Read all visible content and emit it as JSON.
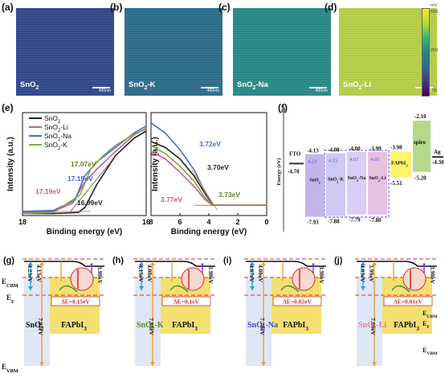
{
  "maps": {
    "panels": [
      {
        "letter": "(a)",
        "name": "SnO",
        "sub": "2",
        "suffix": "",
        "color": "#344a8f",
        "scale": "400nm"
      },
      {
        "letter": "(b)",
        "name": "SnO",
        "sub": "2",
        "suffix": "-K",
        "color": "#2f6f8e",
        "scale": "400nm"
      },
      {
        "letter": "(c)",
        "name": "SnO",
        "sub": "2",
        "suffix": "-Na",
        "color": "#2b8b8a",
        "scale": "400nm"
      },
      {
        "letter": "(d)",
        "name": "SnO",
        "sub": "2",
        "suffix": "-Li",
        "color": "#b8d24a",
        "scale": "400nm"
      }
    ],
    "colorbar": {
      "unit": "mV",
      "max": "550",
      "mid": "250",
      "min": "-50"
    }
  },
  "panel_e": {
    "letter": "(e)",
    "ylabel": "Intensity (a.u.)",
    "xlabel": "Binding energy (eV)",
    "left": {
      "xticks": [
        "18",
        "16"
      ],
      "xrange": [
        18,
        16
      ]
    },
    "right": {
      "xticks": [
        "8",
        "6",
        "4",
        "2",
        "0"
      ],
      "xrange": [
        8,
        0
      ]
    },
    "legend": [
      {
        "name": "SnO",
        "sub": "2",
        "suffix": "",
        "color": "#222222"
      },
      {
        "name": "SnO",
        "sub": "2",
        "suffix": "-Li",
        "color": "#c75a93"
      },
      {
        "name": "SnO",
        "sub": "2",
        "suffix": "-Na",
        "color": "#4a66d8"
      },
      {
        "name": "SnO",
        "sub": "2",
        "suffix": "-K",
        "color": "#7cad3a"
      }
    ],
    "cutoff_labels": [
      {
        "text": "17.07eV",
        "color": "#6b7f1a"
      },
      {
        "text": "17.15eV",
        "color": "#4a66d8"
      },
      {
        "text": "17.19eV",
        "color": "#c75a93"
      },
      {
        "text": "16.99eV",
        "color": "#222222"
      }
    ],
    "vb_labels": [
      {
        "text": "3.72eV",
        "color": "#4a66d8"
      },
      {
        "text": "3.70eV",
        "color": "#222222"
      },
      {
        "text": "3.77eV",
        "color": "#c75a93"
      },
      {
        "text": "3.73eV",
        "color": "#6b7f1a"
      }
    ]
  },
  "chart_data": [
    {
      "type": "line",
      "xlabel": "Binding energy (eV)",
      "ylabel": "Intensity (a.u.)",
      "xlim": [
        18,
        16
      ],
      "series": [
        {
          "name": "SnO2",
          "x": [
            18,
            17.5,
            17.1,
            16.99,
            16.8,
            16.5,
            16.2,
            16
          ],
          "y": [
            0.02,
            0.02,
            0.03,
            0.08,
            0.3,
            0.58,
            0.75,
            0.82
          ]
        },
        {
          "name": "SnO2-Li",
          "x": [
            18,
            17.5,
            17.19,
            17.0,
            16.8,
            16.5,
            16.2,
            16
          ],
          "y": [
            0.03,
            0.04,
            0.12,
            0.32,
            0.45,
            0.62,
            0.78,
            0.85
          ]
        },
        {
          "name": "SnO2-Na",
          "x": [
            18,
            17.5,
            17.15,
            17.0,
            16.8,
            16.5,
            16.2,
            16
          ],
          "y": [
            0.04,
            0.05,
            0.15,
            0.38,
            0.52,
            0.66,
            0.8,
            0.87
          ]
        },
        {
          "name": "SnO2-K",
          "x": [
            18,
            17.5,
            17.07,
            16.9,
            16.7,
            16.5,
            16.2,
            16
          ],
          "y": [
            0.02,
            0.03,
            0.2,
            0.45,
            0.58,
            0.68,
            0.79,
            0.84
          ]
        }
      ]
    },
    {
      "type": "line",
      "xlabel": "Binding energy (eV)",
      "ylabel": "",
      "xlim": [
        8,
        0
      ],
      "series": [
        {
          "name": "SnO2",
          "x": [
            8,
            7,
            6,
            5,
            4.2,
            3.7,
            3,
            2,
            0
          ],
          "y": [
            0.72,
            0.66,
            0.55,
            0.38,
            0.2,
            0.1,
            0.1,
            0.1,
            0.1
          ]
        },
        {
          "name": "SnO2-Li",
          "x": [
            8,
            7,
            6,
            5,
            4.3,
            3.77,
            3,
            2,
            0
          ],
          "y": [
            0.62,
            0.55,
            0.42,
            0.28,
            0.16,
            0.1,
            0.1,
            0.1,
            0.1
          ]
        },
        {
          "name": "SnO2-Na",
          "x": [
            8,
            7,
            6,
            5,
            4.3,
            3.72,
            3,
            2,
            0
          ],
          "y": [
            0.9,
            0.8,
            0.64,
            0.44,
            0.24,
            0.1,
            0.1,
            0.1,
            0.1
          ]
        },
        {
          "name": "SnO2-K",
          "x": [
            8,
            7,
            6,
            5,
            4.3,
            3.73,
            3,
            2,
            0
          ],
          "y": [
            0.68,
            0.6,
            0.48,
            0.33,
            0.18,
            0.1,
            0.1,
            0.1,
            0.1
          ]
        }
      ]
    }
  ],
  "panel_f": {
    "letter": "(f)",
    "axis_label": "Energy (eV)",
    "fto": {
      "name": "FTO",
      "level": "-4.70"
    },
    "sno2": {
      "name": "SnO",
      "sub": "2",
      "cb": "-4.13",
      "inner": "4.23",
      "vb": "-7.93"
    },
    "sno2k": {
      "name": "SnO",
      "sub": "2",
      "suffix": "-K",
      "cb": "-4.08",
      "inner": "4.15",
      "vb": "-7.88"
    },
    "sno2na": {
      "name": "SnO",
      "sub": "2",
      "suffix": "-Na",
      "cb": "-4.00",
      "inner": "4.07",
      "vb": "-7.79"
    },
    "sno2li": {
      "name": "SnO",
      "sub": "2",
      "suffix": "-Li",
      "cb": "-3.99",
      "inner": "4.03",
      "vb": "-7.80"
    },
    "fapbi": {
      "name": "FAPbI",
      "sub": "3",
      "cb": "-3.98",
      "vb": "-5.51"
    },
    "spiro": {
      "name": "spiro",
      "cb": "-2.10",
      "vb": "-5.20"
    },
    "ag": {
      "name": "Ag",
      "level": "-4.30"
    }
  },
  "bottom": {
    "ecbm": "E",
    "ecbm_sub": "CBM",
    "ef": "E",
    "ef_sub": "F",
    "evbm": "E",
    "evbm_sub": "VBM",
    "perovskite": {
      "name": "FAPbI",
      "sub": "3"
    },
    "panels": [
      {
        "letter": "(g)",
        "etl": "SnO",
        "etl_sub": "2",
        "etl_suffix": "",
        "etl_color": "#111111",
        "v1": "4.23eV",
        "v2": "4.13eV",
        "v3": "3.98eV",
        "vb": "7.93eV",
        "delta": "ΔE=0.15eV"
      },
      {
        "letter": "(h)",
        "etl": "SnO",
        "etl_sub": "2",
        "etl_suffix": "-K",
        "etl_color": "#4f8a2a",
        "v1": "4.15eV",
        "v2": "4.08eV",
        "v3": "3.98eV",
        "vb": "7.88eV",
        "delta": "ΔE=0.1eV"
      },
      {
        "letter": "(i)",
        "etl": "SnO",
        "etl_sub": "2",
        "etl_suffix": "-Na",
        "etl_color": "#3551c4",
        "v1": "4.07eV",
        "v2": "4.00eV",
        "v3": "3.98eV",
        "vb": "7.79eV",
        "delta": "ΔE=0.02eV"
      },
      {
        "letter": "(j)",
        "etl": "SnO",
        "etl_sub": "2",
        "etl_suffix": "-Li",
        "etl_color": "#d77aa6",
        "v1": "4.03eV",
        "v2": "3.99eV",
        "v3": "3.98eV",
        "vb": "7.80eV",
        "delta": "ΔE=0.01eV"
      }
    ]
  }
}
